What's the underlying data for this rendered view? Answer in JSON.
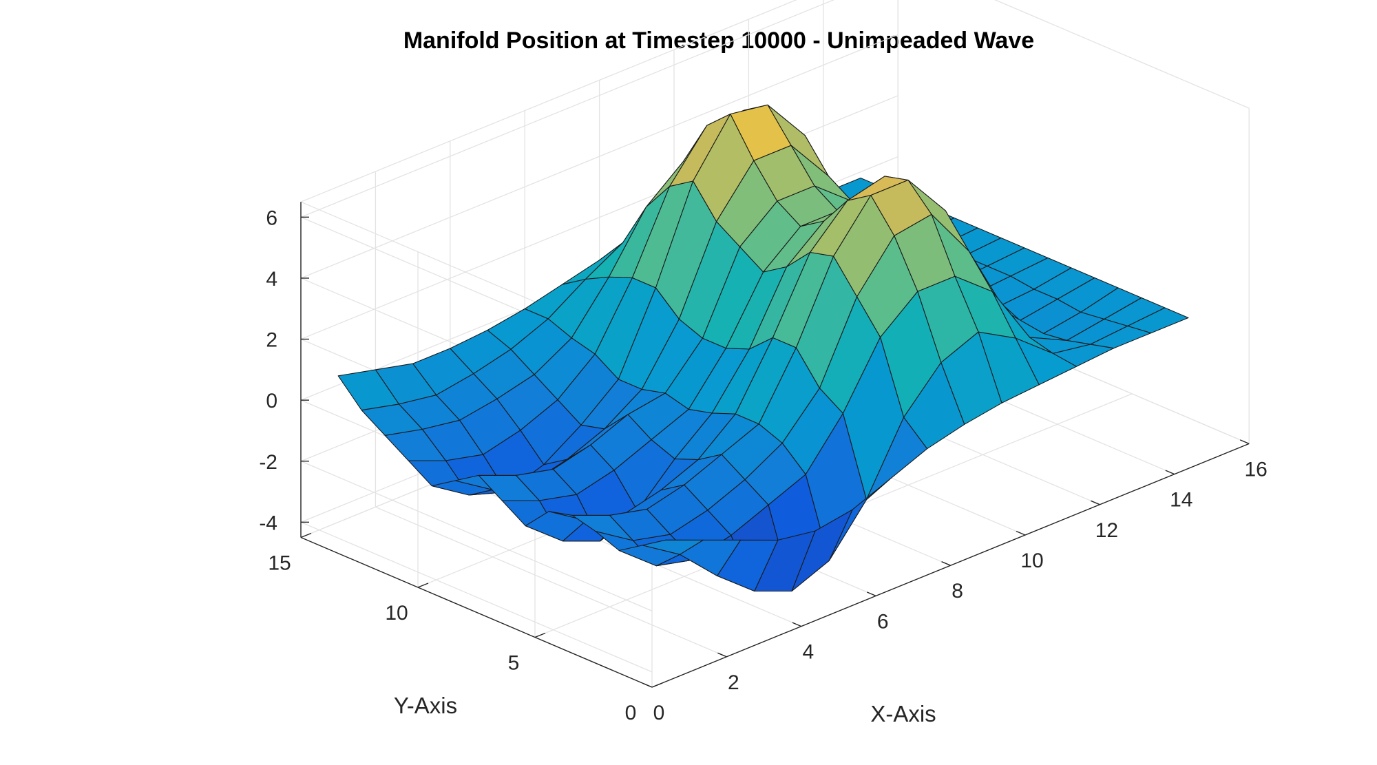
{
  "chart_data": {
    "type": "surface",
    "title": "Manifold Position at Timestep 10000 - Unimpeaded Wave",
    "xlabel": "X-Axis",
    "ylabel": "Y-Axis",
    "zlabel": "",
    "xlim": [
      0,
      16
    ],
    "ylim": [
      0,
      15
    ],
    "zlim": [
      -4.5,
      6.5
    ],
    "x_ticks": [
      "0",
      "2",
      "4",
      "6",
      "8",
      "10",
      "12",
      "14",
      "16"
    ],
    "y_ticks": [
      "0",
      "5",
      "10",
      "15"
    ],
    "z_ticks": [
      "-4",
      "-2",
      "0",
      "2",
      "4",
      "6"
    ],
    "x": [
      1,
      2,
      3,
      4,
      5,
      6,
      7,
      8,
      9,
      10,
      11,
      12,
      13,
      14,
      15
    ],
    "y": [
      1,
      2,
      3,
      4,
      5,
      6,
      7,
      8,
      9,
      10,
      11,
      12,
      13,
      14,
      15
    ],
    "z": [
      [
        -0.5,
        -1.0,
        -1.5,
        -2.0,
        -2.2,
        -2.0,
        -1.5,
        -1.0,
        -0.7,
        -0.5,
        -0.4,
        -0.3,
        -0.2,
        -0.2,
        -0.2
      ],
      [
        -1.0,
        -1.8,
        -3.0,
        -4.0,
        -4.5,
        -4.0,
        -2.5,
        -0.3,
        1.0,
        1.5,
        0.8,
        -0.2,
        -0.4,
        -0.3,
        -0.2
      ],
      [
        -1.5,
        -2.5,
        -2.8,
        -2.5,
        -2.0,
        -1.5,
        0.0,
        2.0,
        3.0,
        3.0,
        2.0,
        0.0,
        -0.6,
        -0.4,
        -0.2
      ],
      [
        -1.2,
        -2.0,
        -2.3,
        -2.0,
        -1.5,
        -0.8,
        0.5,
        3.0,
        4.5,
        4.7,
        3.0,
        0.5,
        -0.7,
        -0.5,
        -0.2
      ],
      [
        -1.0,
        -1.5,
        -1.8,
        -1.5,
        -1.0,
        -0.5,
        1.5,
        4.0,
        5.5,
        5.5,
        4.0,
        1.0,
        -0.6,
        -0.4,
        -0.2
      ],
      [
        -1.2,
        -2.0,
        -2.3,
        -2.0,
        -1.5,
        -0.5,
        1.5,
        3.8,
        5.0,
        5.3,
        4.2,
        1.2,
        -0.5,
        -0.4,
        -0.2
      ],
      [
        -2.0,
        -3.0,
        -3.5,
        -3.0,
        -1.8,
        -0.8,
        0.8,
        3.0,
        4.0,
        4.3,
        3.2,
        0.8,
        -0.4,
        -0.3,
        -0.2
      ],
      [
        -1.5,
        -2.0,
        -2.3,
        -2.0,
        -1.5,
        -1.0,
        0.5,
        2.5,
        3.5,
        3.5,
        2.5,
        0.5,
        -0.4,
        -0.3,
        -0.2
      ],
      [
        -1.0,
        -1.5,
        -1.8,
        -1.5,
        -1.0,
        -0.8,
        0.5,
        3.0,
        4.0,
        4.0,
        3.0,
        0.5,
        -0.4,
        -0.3,
        -0.2
      ],
      [
        -1.5,
        -2.3,
        -2.6,
        -2.3,
        -1.8,
        -1.0,
        0.8,
        3.5,
        5.0,
        5.0,
        3.5,
        0.8,
        -0.4,
        -0.3,
        -0.2
      ],
      [
        -2.0,
        -2.8,
        -3.2,
        -2.8,
        -2.0,
        -1.0,
        1.5,
        4.5,
        6.2,
        6.0,
        4.5,
        1.0,
        -0.4,
        -0.3,
        -0.2
      ],
      [
        -1.5,
        -2.0,
        -2.3,
        -2.0,
        -1.5,
        -0.5,
        1.5,
        4.0,
        5.5,
        5.5,
        4.0,
        1.0,
        -0.4,
        -0.3,
        -0.2
      ],
      [
        -1.0,
        -1.3,
        -1.5,
        -1.3,
        -1.0,
        -0.3,
        1.2,
        3.0,
        4.0,
        4.0,
        3.0,
        0.8,
        -0.3,
        -0.3,
        -0.2
      ],
      [
        -0.5,
        -0.8,
        -1.0,
        -0.8,
        -0.5,
        0.0,
        0.8,
        1.5,
        2.0,
        2.0,
        1.5,
        0.4,
        -0.3,
        -0.2,
        -0.2
      ],
      [
        0.3,
        0.0,
        -0.3,
        -0.3,
        -0.2,
        0.0,
        0.3,
        0.6,
        0.8,
        0.8,
        0.6,
        0.2,
        -0.2,
        -0.2,
        -0.2
      ]
    ],
    "grid": true,
    "colormap": "parula"
  }
}
